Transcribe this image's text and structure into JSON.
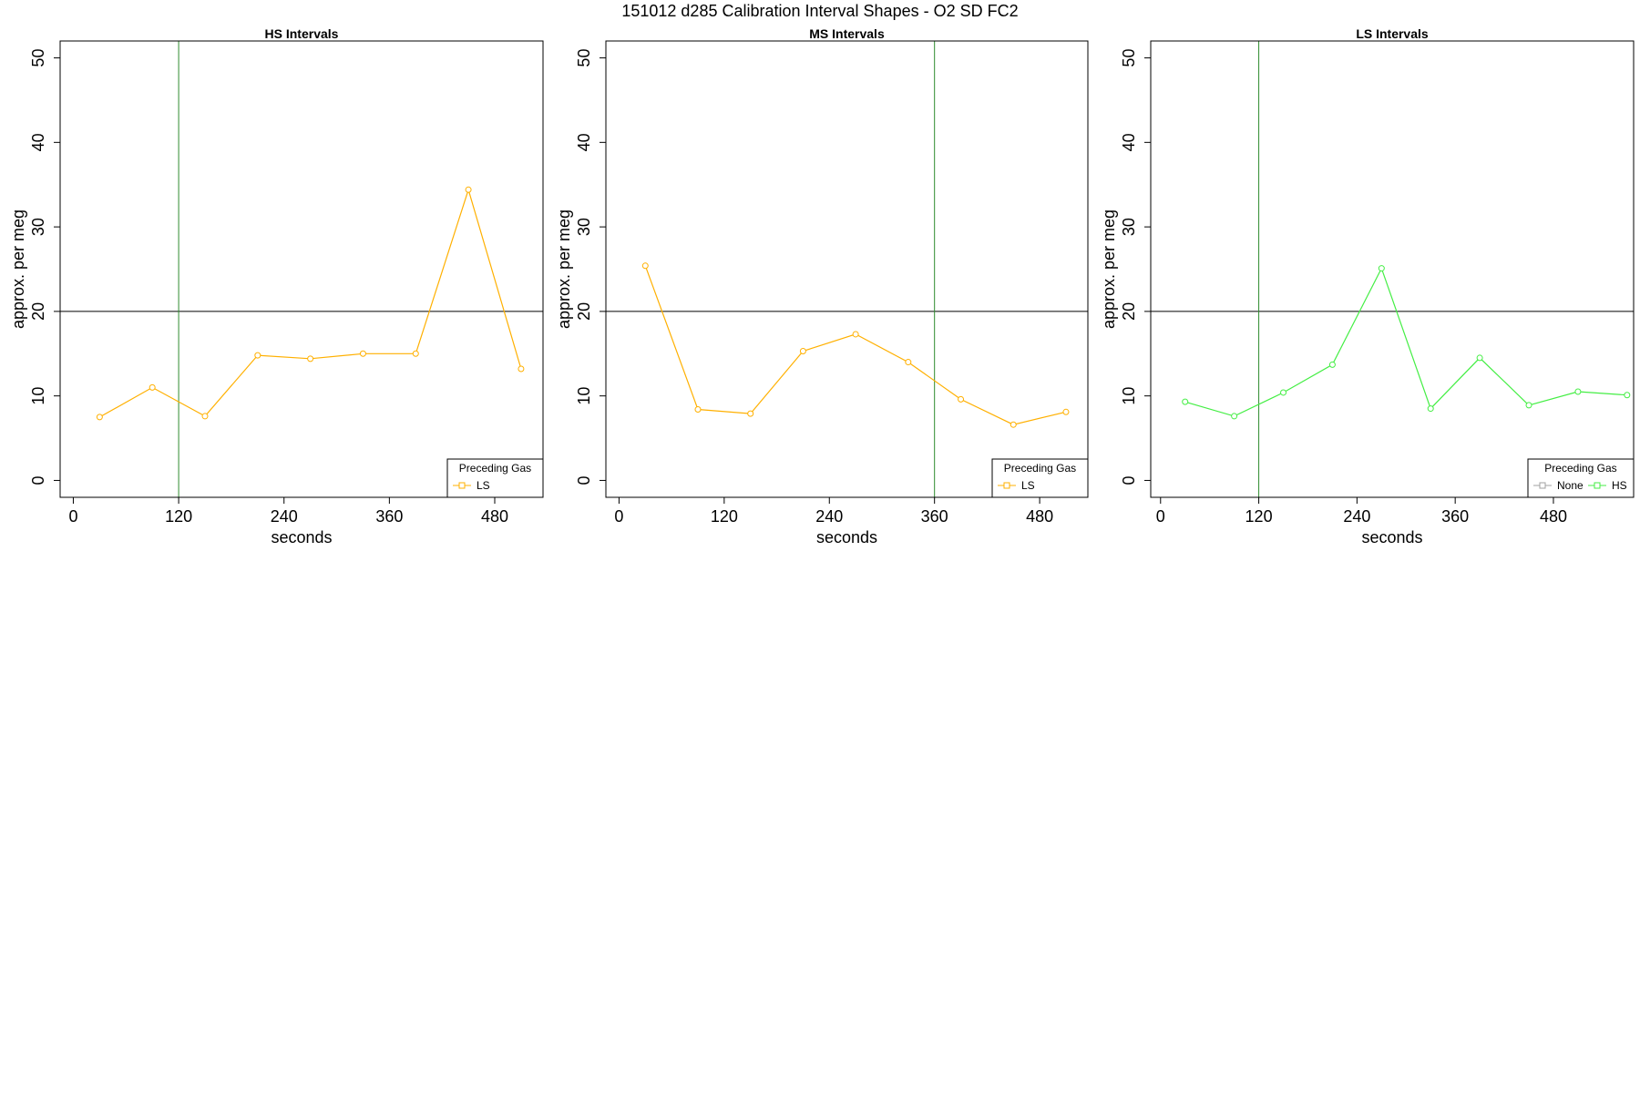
{
  "suptitle": "151012   d285   Calibration Interval Shapes - O2 SD FC2",
  "chart_data": [
    {
      "type": "line",
      "title": "HS Intervals",
      "xlabel": "seconds",
      "ylabel": "approx. per meg",
      "xlim": [
        -15,
        535
      ],
      "ylim": [
        -2,
        52
      ],
      "xticks": [
        0,
        120,
        240,
        360,
        480
      ],
      "yticks": [
        0,
        10,
        20,
        30,
        40,
        50
      ],
      "hline": 20,
      "vline": 120,
      "vline_color": "#2e8b2e",
      "legend": {
        "title": "Preceding Gas",
        "position": "bottom-right"
      },
      "series": [
        {
          "name": "LS",
          "color": "#ffb000",
          "x": [
            30,
            90,
            150,
            210,
            270,
            330,
            390,
            450,
            510
          ],
          "y": [
            7.5,
            11.0,
            7.6,
            14.8,
            14.4,
            15.0,
            15.0,
            34.4,
            13.2
          ]
        }
      ]
    },
    {
      "type": "line",
      "title": "MS Intervals",
      "xlabel": "seconds",
      "ylabel": "approx. per meg",
      "xlim": [
        -15,
        535
      ],
      "ylim": [
        -2,
        52
      ],
      "xticks": [
        0,
        120,
        240,
        360,
        480
      ],
      "yticks": [
        0,
        10,
        20,
        30,
        40,
        50
      ],
      "hline": 20,
      "vline": 360,
      "vline_color": "#2e8b2e",
      "legend": {
        "title": "Preceding Gas",
        "position": "bottom-right"
      },
      "series": [
        {
          "name": "LS",
          "color": "#ffb000",
          "x": [
            30,
            90,
            150,
            210,
            270,
            330,
            390,
            450,
            510
          ],
          "y": [
            25.4,
            8.4,
            7.9,
            15.3,
            17.3,
            14.0,
            9.6,
            6.6,
            8.1
          ]
        }
      ]
    },
    {
      "type": "line",
      "title": "LS Intervals",
      "xlabel": "seconds",
      "ylabel": "approx. per meg",
      "xlim": [
        -12,
        578
      ],
      "ylim": [
        -2,
        52
      ],
      "xticks": [
        0,
        120,
        240,
        360,
        480
      ],
      "yticks": [
        0,
        10,
        20,
        30,
        40,
        50
      ],
      "hline": 20,
      "vline": 120,
      "vline_color": "#2e8b2e",
      "legend": {
        "title": "Preceding Gas",
        "position": "bottom-right"
      },
      "series": [
        {
          "name": "None",
          "color": "#a0a0a0",
          "x": [],
          "y": []
        },
        {
          "name": "HS",
          "color": "#44ee44",
          "x": [
            30,
            90,
            150,
            210,
            270,
            330,
            390,
            450,
            510,
            570
          ],
          "y": [
            9.3,
            7.6,
            10.4,
            13.7,
            25.1,
            8.5,
            14.5,
            8.9,
            10.5,
            10.1
          ]
        }
      ]
    }
  ]
}
